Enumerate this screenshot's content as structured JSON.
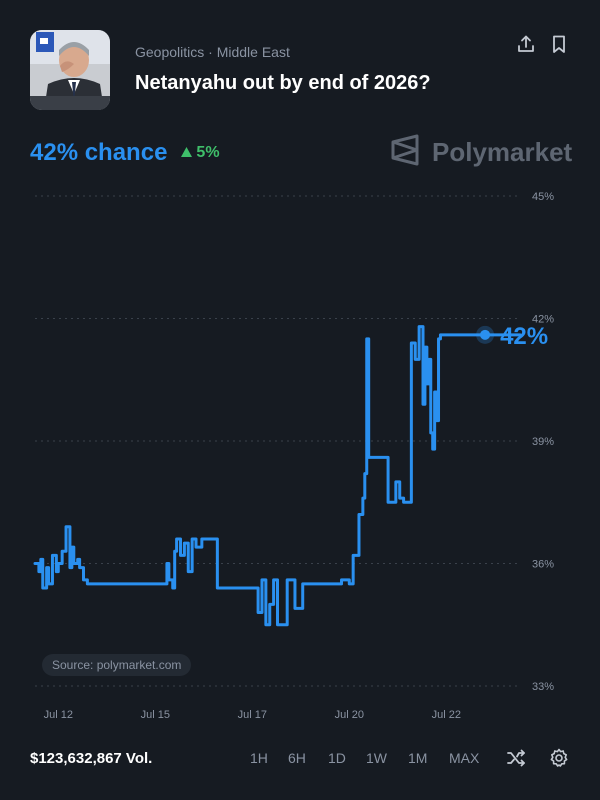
{
  "header": {
    "category": "Geopolitics · Middle East",
    "title": "Netanyahu out by end of 2026?",
    "actions": [
      {
        "name": "share-icon"
      },
      {
        "name": "bookmark-icon"
      }
    ]
  },
  "summary": {
    "chance": "42% chance",
    "delta": "5%",
    "delta_direction": "up",
    "delta_color": "#3fbf6a"
  },
  "brand": {
    "name": "Polymarket",
    "icon": "polymarket-logo-icon"
  },
  "source_label": "Source: polymarket.com",
  "footer": {
    "volume": "$123,632,867 Vol.",
    "ranges": [
      "1H",
      "6H",
      "1D",
      "1W",
      "1M",
      "MAX"
    ],
    "icons": [
      "shuffle-icon",
      "settings-icon"
    ]
  },
  "colors": {
    "background": "#161b22",
    "accent": "#2a90f0",
    "grid": "#3a414b",
    "muted_text": "#8a93a2"
  },
  "chart_data": {
    "type": "line",
    "title": "",
    "xlabel": "",
    "ylabel": "",
    "ylim": [
      33,
      45
    ],
    "yticks": [
      45,
      42,
      39,
      36,
      33
    ],
    "ytick_labels": [
      "45%",
      "42%",
      "39%",
      "36%",
      "33%"
    ],
    "grid": true,
    "y_axis_position": "right",
    "xlim": [
      11.4,
      23.9
    ],
    "xticks": [
      12,
      14,
      16,
      18,
      20,
      22
    ],
    "xtick_labels": [
      "Jul 12",
      "Jul 15",
      "Jul 17",
      "Jul 20",
      "Jul 22"
    ],
    "xtick_positions": [
      12,
      14.5,
      17,
      19.5,
      22
    ],
    "end_label": "42%",
    "series": [
      {
        "color": "#2a90f0",
        "x": [
          11.4,
          11.5,
          11.55,
          11.6,
          11.7,
          11.75,
          11.85,
          11.95,
          12.0,
          12.1,
          12.2,
          12.3,
          12.35,
          12.4,
          12.5,
          12.55,
          12.65,
          12.75,
          12.85,
          12.95,
          13.1,
          13.3,
          13.6,
          13.9,
          14.2,
          14.5,
          14.75,
          14.8,
          14.85,
          14.95,
          15.0,
          15.05,
          15.15,
          15.25,
          15.35,
          15.45,
          15.55,
          15.7,
          15.9,
          16.1,
          16.3,
          16.5,
          16.7,
          16.9,
          17.05,
          17.15,
          17.25,
          17.35,
          17.45,
          17.55,
          17.65,
          17.75,
          17.9,
          18.1,
          18.3,
          18.5,
          18.7,
          18.9,
          19.1,
          19.3,
          19.5,
          19.6,
          19.75,
          19.85,
          19.9,
          19.95,
          20.0,
          20.05,
          20.15,
          20.3,
          20.5,
          20.7,
          20.8,
          20.9,
          21.0,
          21.1,
          21.2,
          21.3,
          21.4,
          21.45,
          21.5,
          21.55,
          21.6,
          21.65,
          21.7,
          21.75,
          21.8,
          21.85,
          21.9,
          21.95,
          22.0,
          22.1,
          22.3,
          22.5,
          22.7,
          22.9,
          23.1,
          23.3,
          23.5,
          23.7,
          23.9
        ],
        "y": [
          36.0,
          35.8,
          36.1,
          35.4,
          35.9,
          35.5,
          36.2,
          35.8,
          36.0,
          36.3,
          36.9,
          35.9,
          36.4,
          36.0,
          36.1,
          35.9,
          35.6,
          35.5,
          35.5,
          35.5,
          35.5,
          35.5,
          35.5,
          35.5,
          35.5,
          35.5,
          35.5,
          36.0,
          35.6,
          35.4,
          36.3,
          36.6,
          36.2,
          36.5,
          35.8,
          36.6,
          36.4,
          36.6,
          36.6,
          35.4,
          35.4,
          35.4,
          35.4,
          35.4,
          35.4,
          34.8,
          35.6,
          34.5,
          35.0,
          35.6,
          34.5,
          34.5,
          35.6,
          34.9,
          35.5,
          35.5,
          35.5,
          35.5,
          35.5,
          35.6,
          35.5,
          36.2,
          37.2,
          37.6,
          38.2,
          41.5,
          38.6,
          38.6,
          38.6,
          38.6,
          37.5,
          38.0,
          37.6,
          37.5,
          37.5,
          41.4,
          41.0,
          41.8,
          39.9,
          41.3,
          40.4,
          41.0,
          39.2,
          38.8,
          40.2,
          39.5,
          41.5,
          41.6,
          41.6,
          41.6,
          41.6,
          41.6,
          41.6,
          41.6,
          41.6,
          41.6,
          41.6,
          41.6,
          41.6,
          41.6,
          41.6
        ]
      }
    ]
  }
}
